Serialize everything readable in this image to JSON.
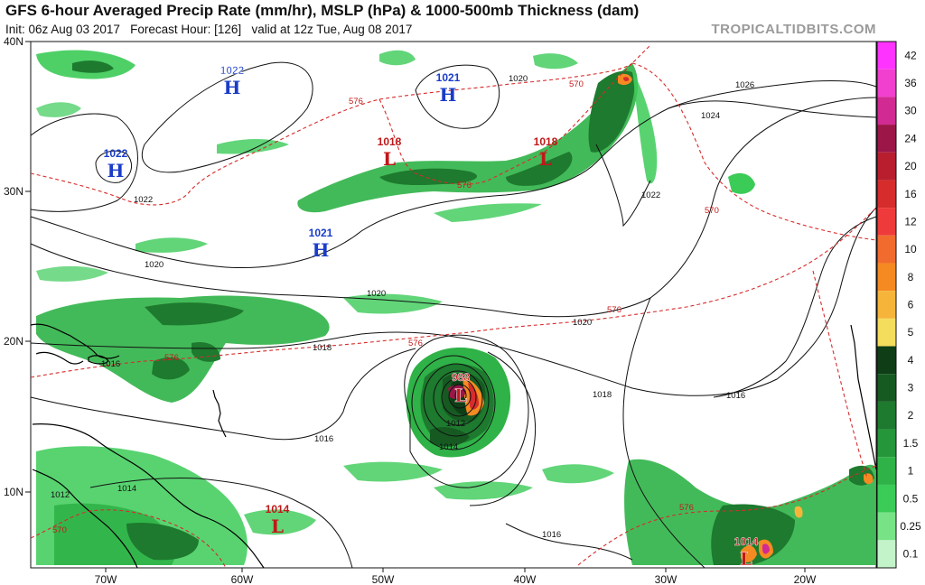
{
  "header": {
    "title": "GFS 6-hour Averaged Precip Rate (mm/hr), MSLP (hPa) & 1000-500mb Thickness (dam)",
    "init": "Init: 06z Aug 03 2017",
    "forecast_hour": "Forecast Hour: [126]",
    "valid": "valid at 12z Tue, Aug 08 2017",
    "brand": "TROPICALTIDBITS.COM"
  },
  "axes": {
    "lat_labels": [
      "40N",
      "30N",
      "20N",
      "10N"
    ],
    "lon_labels": [
      "70W",
      "60W",
      "50W",
      "40W",
      "30W",
      "20W"
    ]
  },
  "colorbar": {
    "labels": [
      "42",
      "36",
      "30",
      "24",
      "20",
      "16",
      "12",
      "10",
      "8",
      "6",
      "5",
      "4",
      "3",
      "2",
      "1.5",
      "1",
      "0.5",
      "0.25",
      "0.1"
    ],
    "colors": [
      "#ff33ff",
      "#f13fcf",
      "#d12a92",
      "#9c1648",
      "#b81e2e",
      "#d62c2c",
      "#ee3a3a",
      "#f26b2e",
      "#f58a22",
      "#f6b43a",
      "#f4dc5c",
      "#0e3d16",
      "#165a22",
      "#1d7a2e",
      "#25963a",
      "#2fb247",
      "#3bcb57",
      "#77e386",
      "#c2f3c9"
    ]
  },
  "pressure_centers": [
    {
      "type": "H",
      "value": "1022",
      "color": "#1a3cc8"
    },
    {
      "type": "H",
      "value": "1021",
      "color": "#1a3cc8"
    },
    {
      "type": "H",
      "value": "1022",
      "color": "#1a3cc8"
    },
    {
      "type": "H",
      "value": "1021",
      "color": "#1a3cc8"
    },
    {
      "type": "L",
      "value": "1018",
      "color": "#c01818"
    },
    {
      "type": "L",
      "value": "1018",
      "color": "#c01818"
    },
    {
      "type": "L",
      "value": "988",
      "color": "#c01818"
    },
    {
      "type": "L",
      "value": "1014",
      "color": "#c01818"
    },
    {
      "type": "L",
      "value": "1014",
      "color": "#c01818"
    }
  ],
  "isobar_labels": [
    "1020",
    "1022",
    "1020",
    "1020",
    "1020",
    "1018",
    "1016",
    "1018",
    "1016",
    "1016",
    "1014",
    "1012",
    "1012",
    "1014",
    "1016",
    "1024",
    "1026",
    "1022"
  ],
  "thickness_labels": [
    "576",
    "570",
    "576",
    "570",
    "576",
    "576",
    "576",
    "576",
    "570"
  ]
}
